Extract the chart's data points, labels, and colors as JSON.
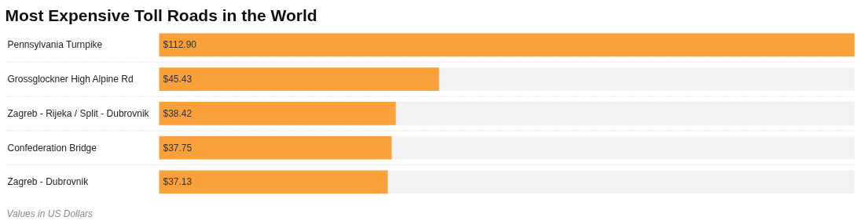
{
  "chart_data": {
    "type": "bar",
    "orientation": "horizontal",
    "title": "Most Expensive Toll Roads in the World",
    "categories": [
      "Pennsylvania Turnpike",
      "Grossglockner High Alpine Rd",
      "Zagreb - Rijeka / Split - Dubrovnik",
      "Confederation Bridge",
      "Zagreb - Dubrovnik"
    ],
    "values": [
      112.9,
      45.43,
      38.42,
      37.75,
      37.13
    ],
    "value_labels": [
      "$112.90",
      "$45.43",
      "$38.42",
      "$37.75",
      "$37.13"
    ],
    "color": "#fba13b",
    "annotations": [
      "Values in US Dollars"
    ]
  }
}
